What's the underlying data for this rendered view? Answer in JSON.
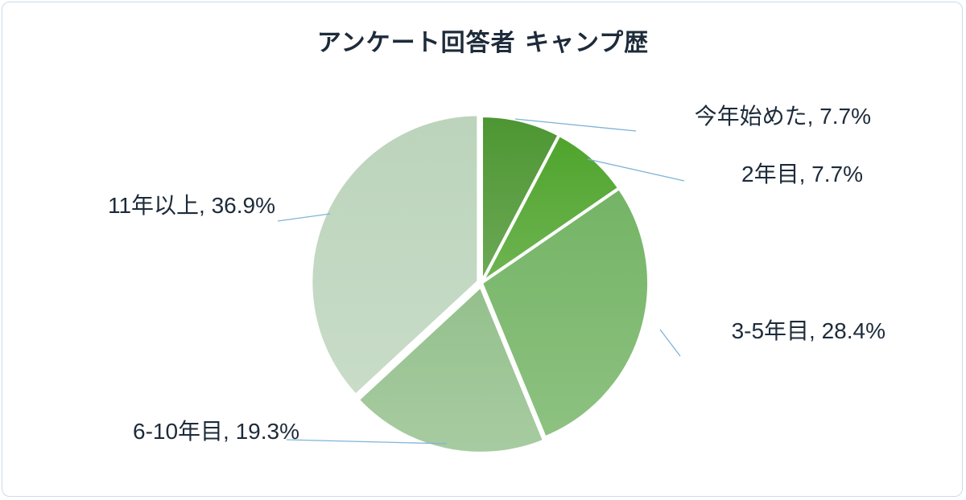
{
  "chart_data": {
    "type": "pie",
    "title": "アンケート回答者 キャンプ歴",
    "categories": [
      "今年始めた",
      "2年目",
      "3-5年目",
      "6-10年目",
      "11年以上"
    ],
    "values": [
      7.7,
      7.7,
      28.4,
      19.3,
      36.9
    ],
    "labels": [
      "今年始めた, 7.7%",
      "2年目, 7.7%",
      "3-5年目, 28.4%",
      "6-10年目, 19.3%",
      "11年以上, 36.9%"
    ],
    "colors": [
      "#4d9632",
      "#4fa42c",
      "#74b465",
      "#94c08c",
      "#bcd4bb"
    ],
    "legend": "none"
  }
}
